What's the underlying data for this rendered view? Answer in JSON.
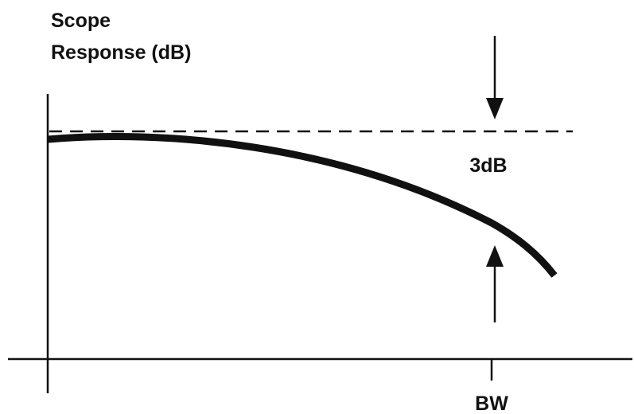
{
  "colors": {
    "line": "#111111",
    "background": "#ffffff"
  },
  "labels": {
    "y_axis_line1": "Scope",
    "y_axis_line2": "Response (dB)",
    "attenuation": "3dB",
    "bandwidth": "BW"
  }
}
